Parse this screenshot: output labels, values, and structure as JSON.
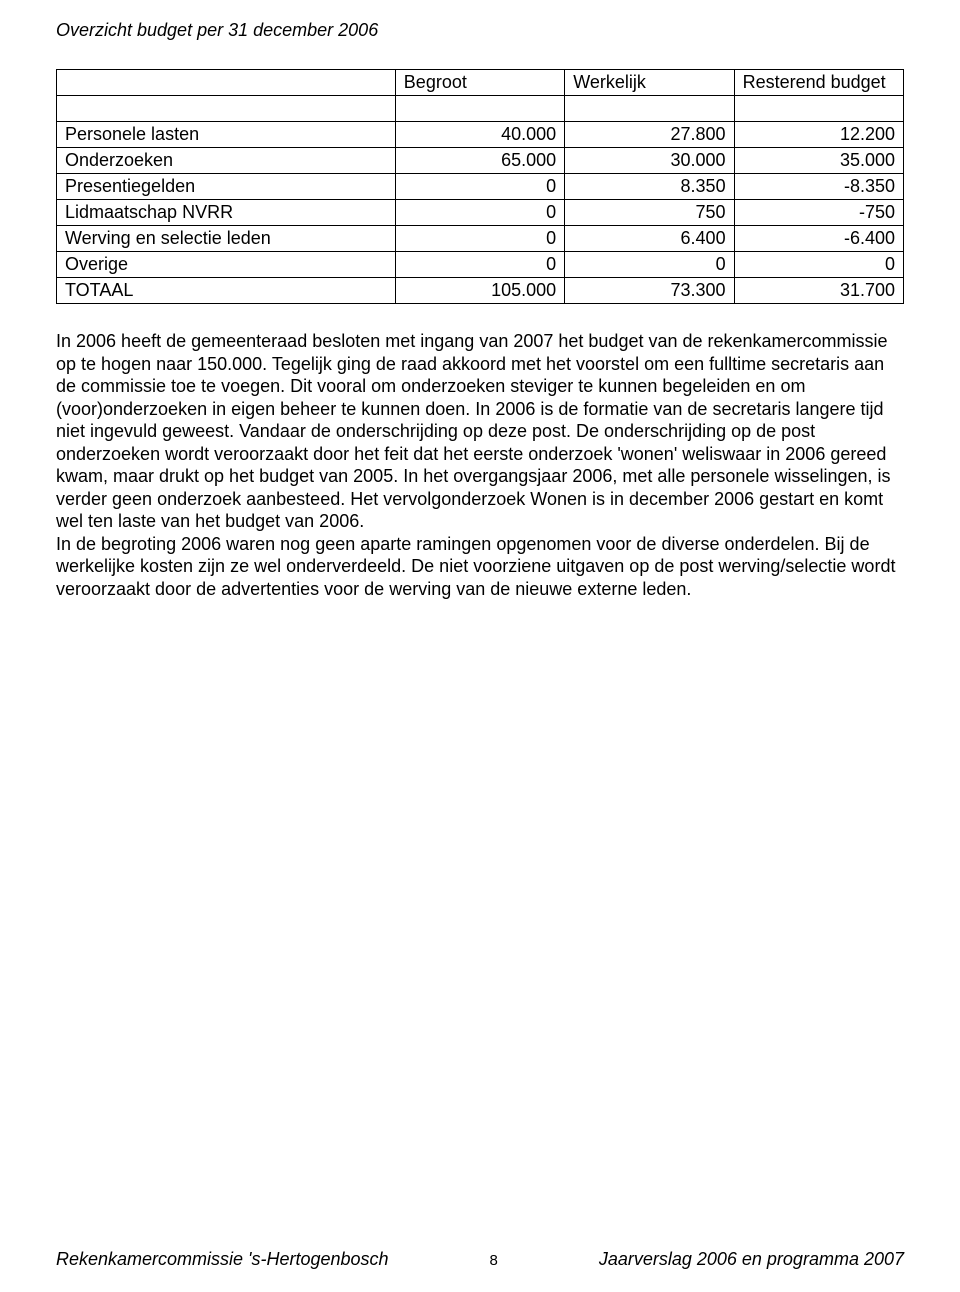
{
  "title": "Overzicht budget per 31 december 2006",
  "table": {
    "columns": [
      "",
      "Begroot",
      "Werkelijk",
      "Resterend budget"
    ],
    "col_widths_pct": [
      40,
      20,
      20,
      20
    ],
    "rows": [
      {
        "label": "Personele lasten",
        "c1": "40.000",
        "c2": "27.800",
        "c3": "12.200"
      },
      {
        "label": "Onderzoeken",
        "c1": "65.000",
        "c2": "30.000",
        "c3": "35.000"
      },
      {
        "label": "Presentiegelden",
        "c1": "0",
        "c2": "8.350",
        "c3": "-8.350"
      },
      {
        "label": "Lidmaatschap NVRR",
        "c1": "0",
        "c2": "750",
        "c3": "-750"
      },
      {
        "label": "Werving en selectie leden",
        "c1": "0",
        "c2": "6.400",
        "c3": "-6.400"
      },
      {
        "label": "Overige",
        "c1": "0",
        "c2": "0",
        "c3": "0"
      },
      {
        "label": "TOTAAL",
        "c1": "105.000",
        "c2": "73.300",
        "c3": "31.700"
      }
    ]
  },
  "paragraph": "In 2006 heeft de gemeenteraad besloten met ingang van 2007 het budget van de rekenkamercommissie op te hogen naar 150.000. Tegelijk ging de raad akkoord met het voorstel om een fulltime secretaris aan de commissie toe te voegen. Dit vooral om onderzoeken steviger te kunnen begeleiden en om (voor)onderzoeken in eigen beheer te kunnen doen. In 2006 is de formatie van de secretaris langere tijd niet ingevuld geweest. Vandaar de onderschrijding op deze post. De onderschrijding op de post onderzoeken wordt veroorzaakt door het feit dat het eerste onderzoek 'wonen' weliswaar in 2006 gereed kwam, maar drukt op het budget van 2005. In het overgangsjaar 2006, met alle personele wisselingen, is verder geen onderzoek aanbesteed. Het vervolgonderzoek Wonen is in december 2006 gestart en komt wel ten laste van het budget van 2006.\nIn de begroting 2006 waren nog geen aparte ramingen opgenomen voor de diverse onderdelen. Bij de werkelijke kosten zijn ze wel onderverdeeld. De niet voorziene uitgaven op de post werving/selectie wordt veroorzaakt door de advertenties voor de werving van de nieuwe externe leden.",
  "footer": {
    "left": "Rekenkamercommissie 's-Hertogenbosch",
    "page": "8",
    "right": "Jaarverslag 2006 en programma 2007"
  },
  "style": {
    "background_color": "#ffffff",
    "text_color": "#000000",
    "border_color": "#000000",
    "font_family": "Arial",
    "body_fontsize": 18,
    "title_fontstyle": "italic"
  }
}
